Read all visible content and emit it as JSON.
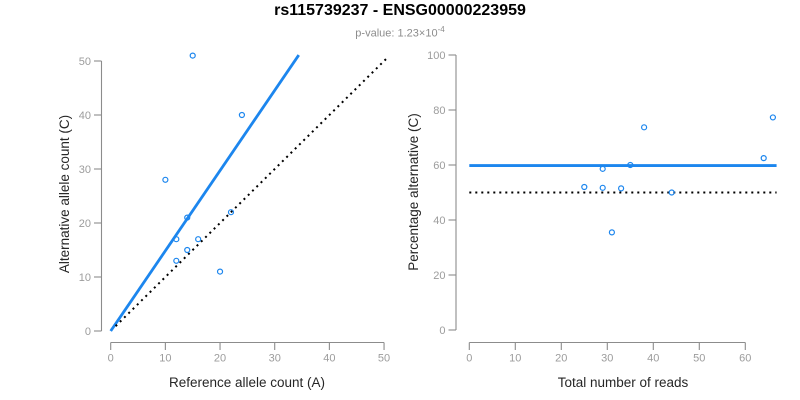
{
  "header": {
    "title": "rs115739237 - ENSG00000223959",
    "pvalue_text": "p-value: 1.23×10",
    "pvalue_exponent": "-4"
  },
  "colors": {
    "accent_blue": "#1C86EE",
    "line_black": "#000000",
    "axis_line_gray": "#8C8C8C",
    "tick_label_gray": "#9C9C9C",
    "axis_title_dark": "#262626",
    "subtitle_gray": "#8C8C8C",
    "background": "#FFFFFF"
  },
  "chart_data": [
    {
      "type": "scatter",
      "panel": "left",
      "title": "",
      "xlabel": "Reference allele count (A)",
      "ylabel": "Alternative allele count (C)",
      "xlim": [
        0,
        50
      ],
      "ylim": [
        0,
        51.2
      ],
      "xticks": [
        0,
        10,
        20,
        30,
        40,
        50
      ],
      "yticks": [
        0,
        10,
        20,
        30,
        40,
        50
      ],
      "grid": false,
      "legend": null,
      "points": [
        [
          15,
          51
        ],
        [
          24,
          40
        ],
        [
          10,
          28
        ],
        [
          14,
          21
        ],
        [
          22,
          22
        ],
        [
          12,
          17
        ],
        [
          16,
          17
        ],
        [
          14,
          15
        ],
        [
          12,
          13
        ],
        [
          20,
          11
        ]
      ],
      "lines": [
        {
          "name": "regression-line",
          "style": "solid",
          "color_key": "accent_blue",
          "x1": 0,
          "y1": 0,
          "x2": 34.4,
          "y2": 51.1
        },
        {
          "name": "identity-line",
          "style": "dotted",
          "color_key": "line_black",
          "x1": 0.9,
          "y1": 0.9,
          "x2": 50.6,
          "y2": 50.6
        }
      ]
    },
    {
      "type": "scatter",
      "panel": "right",
      "title": "",
      "xlabel": "Total number of reads",
      "ylabel": "Percentage alternative (C)",
      "xlim": [
        0,
        66.8
      ],
      "ylim": [
        0,
        100
      ],
      "xticks": [
        0,
        10,
        20,
        30,
        40,
        50,
        60
      ],
      "yticks": [
        0,
        20,
        40,
        60,
        80,
        100
      ],
      "grid": false,
      "legend": null,
      "points": [
        [
          66,
          77.3
        ],
        [
          64,
          62.5
        ],
        [
          38,
          73.7
        ],
        [
          35,
          60
        ],
        [
          44,
          50
        ],
        [
          29,
          58.6
        ],
        [
          33,
          51.5
        ],
        [
          29,
          51.7
        ],
        [
          25,
          52
        ],
        [
          31,
          35.5
        ]
      ],
      "lines": [
        {
          "name": "mean-percentage-line",
          "style": "solid",
          "color_key": "accent_blue",
          "x1": 0,
          "y1": 59.8,
          "x2": 66.8,
          "y2": 59.8
        },
        {
          "name": "fifty-percent-line",
          "style": "dotted",
          "color_key": "line_black",
          "x1": 0,
          "y1": 50,
          "x2": 66.8,
          "y2": 50
        }
      ]
    }
  ]
}
